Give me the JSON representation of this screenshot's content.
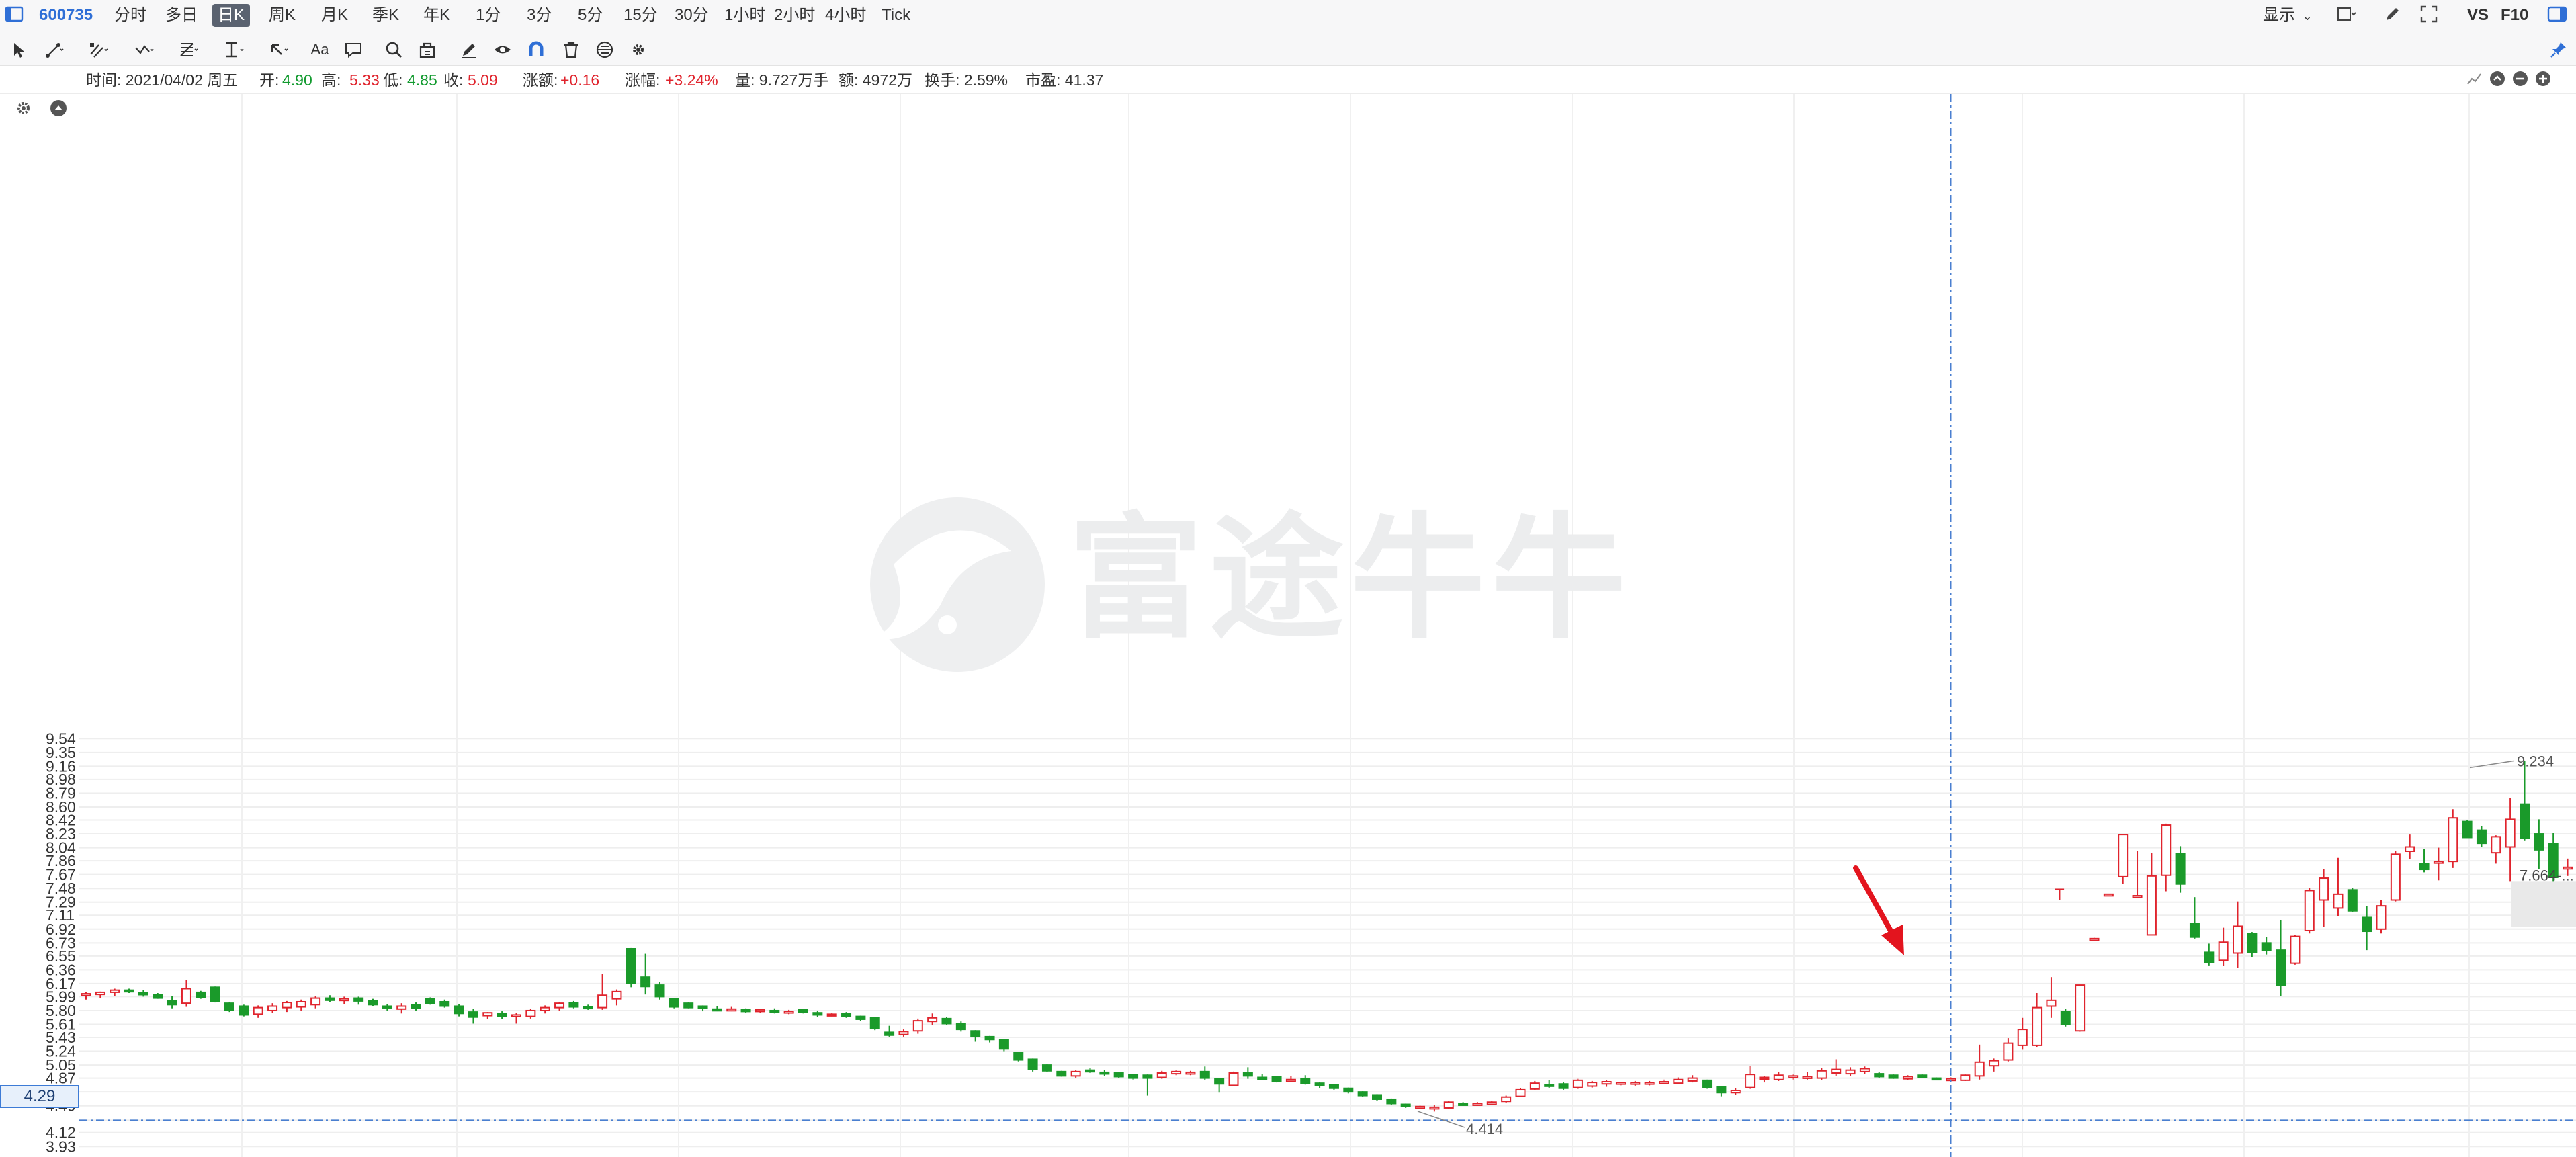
{
  "toolbar": {
    "stock_code": "600735",
    "periods": [
      "分时",
      "多日",
      "日K",
      "周K",
      "月K",
      "季K",
      "年K",
      "1分",
      "3分",
      "5分",
      "15分",
      "30分",
      "1小时",
      "2小时",
      "4小时",
      "Tick"
    ],
    "active_period": "日K",
    "display_label": "显示",
    "vs_label": "VS",
    "f10_label": "F10"
  },
  "tools": [
    "cursor-icon",
    "line-tool-icon",
    "channel-tool-icon",
    "wave-tool-icon",
    "fibonacci-icon",
    "measure-icon",
    "arrow-tool-icon",
    "text-tool-icon",
    "comment-icon",
    "zoom-icon",
    "bag-icon",
    "pen-icon",
    "eye-icon",
    "magnet-icon",
    "trash-icon",
    "lock-icon",
    "settings-icon"
  ],
  "info": {
    "date": "时间: 2021/04/02 周五",
    "open_label": "开:",
    "open": "4.90",
    "high_label": "高:",
    "high": "5.33",
    "low_label": "低:",
    "low": "4.85",
    "close_label": "收:",
    "close": "5.09",
    "change_label": "涨额:",
    "change": "+0.16",
    "pct_label": "涨幅:",
    "pct": "+3.24%",
    "volume": "量: 9.727万手",
    "amount": "额: 4972万",
    "turnover": "换手: 2.59%",
    "pe": "市盈: 41.37"
  },
  "watermark": "富途牛牛",
  "crosshair": {
    "price_label": "4.29"
  },
  "colors": {
    "up": "#e0242d",
    "down": "#1a9a2a",
    "crosshair": "#4a7fd0",
    "watermark": "#e9eaeb",
    "arrow": "#e3141e"
  },
  "chart_data": {
    "type": "candlestick",
    "ylim": [
      3.93,
      9.6
    ],
    "y_ticks": [
      "9.54",
      "9.35",
      "9.16",
      "8.98",
      "8.79",
      "8.60",
      "8.42",
      "8.23",
      "8.04",
      "7.86",
      "7.67",
      "7.48",
      "7.29",
      "7.11",
      "6.92",
      "6.73",
      "6.55",
      "6.36",
      "6.17",
      "5.99",
      "5.80",
      "5.61",
      "5.43",
      "5.24",
      "5.05",
      "4.87",
      "4.68",
      "4.49",
      "4.29",
      "4.12",
      "3.93"
    ],
    "annotations": [
      {
        "text": "4.414",
        "value": 4.414
      },
      {
        "text": "9.234",
        "value": 9.234
      },
      {
        "text": "7.664-...",
        "value": 7.664
      },
      {
        "text": "T",
        "value": 7.4
      }
    ],
    "candles": [
      {
        "o": 6.02,
        "h": 6.05,
        "l": 5.95,
        "c": 6.03
      },
      {
        "o": 6.02,
        "h": 6.06,
        "l": 5.97,
        "c": 6.05
      },
      {
        "o": 6.05,
        "h": 6.1,
        "l": 6.0,
        "c": 6.08
      },
      {
        "o": 6.08,
        "h": 6.1,
        "l": 6.04,
        "c": 6.06
      },
      {
        "o": 6.04,
        "h": 6.08,
        "l": 5.99,
        "c": 6.02
      },
      {
        "o": 6.02,
        "h": 6.04,
        "l": 5.96,
        "c": 5.97
      },
      {
        "o": 5.93,
        "h": 6.0,
        "l": 5.83,
        "c": 5.88
      },
      {
        "o": 5.9,
        "h": 6.22,
        "l": 5.85,
        "c": 6.1
      },
      {
        "o": 6.05,
        "h": 6.07,
        "l": 5.96,
        "c": 5.98
      },
      {
        "o": 6.12,
        "h": 6.13,
        "l": 5.91,
        "c": 5.92
      },
      {
        "o": 5.9,
        "h": 5.92,
        "l": 5.78,
        "c": 5.8
      },
      {
        "o": 5.86,
        "h": 5.88,
        "l": 5.72,
        "c": 5.74
      },
      {
        "o": 5.75,
        "h": 5.87,
        "l": 5.7,
        "c": 5.84
      },
      {
        "o": 5.8,
        "h": 5.9,
        "l": 5.77,
        "c": 5.86
      },
      {
        "o": 5.84,
        "h": 5.93,
        "l": 5.78,
        "c": 5.91
      },
      {
        "o": 5.85,
        "h": 5.95,
        "l": 5.8,
        "c": 5.92
      },
      {
        "o": 5.88,
        "h": 6.0,
        "l": 5.83,
        "c": 5.97
      },
      {
        "o": 5.97,
        "h": 6.01,
        "l": 5.92,
        "c": 5.94
      },
      {
        "o": 5.94,
        "h": 5.99,
        "l": 5.89,
        "c": 5.96
      },
      {
        "o": 5.97,
        "h": 5.99,
        "l": 5.88,
        "c": 5.93
      },
      {
        "o": 5.93,
        "h": 5.96,
        "l": 5.86,
        "c": 5.88
      },
      {
        "o": 5.86,
        "h": 5.89,
        "l": 5.8,
        "c": 5.84
      },
      {
        "o": 5.82,
        "h": 5.9,
        "l": 5.76,
        "c": 5.86
      },
      {
        "o": 5.88,
        "h": 5.91,
        "l": 5.8,
        "c": 5.83
      },
      {
        "o": 5.96,
        "h": 5.98,
        "l": 5.88,
        "c": 5.9
      },
      {
        "o": 5.92,
        "h": 5.95,
        "l": 5.84,
        "c": 5.86
      },
      {
        "o": 5.86,
        "h": 5.89,
        "l": 5.72,
        "c": 5.76
      },
      {
        "o": 5.78,
        "h": 5.82,
        "l": 5.62,
        "c": 5.71
      },
      {
        "o": 5.73,
        "h": 5.78,
        "l": 5.68,
        "c": 5.77
      },
      {
        "o": 5.76,
        "h": 5.79,
        "l": 5.68,
        "c": 5.72
      },
      {
        "o": 5.72,
        "h": 5.77,
        "l": 5.62,
        "c": 5.74
      },
      {
        "o": 5.72,
        "h": 5.82,
        "l": 5.69,
        "c": 5.8
      },
      {
        "o": 5.8,
        "h": 5.87,
        "l": 5.76,
        "c": 5.84
      },
      {
        "o": 5.84,
        "h": 5.92,
        "l": 5.8,
        "c": 5.9
      },
      {
        "o": 5.91,
        "h": 5.93,
        "l": 5.83,
        "c": 5.85
      },
      {
        "o": 5.85,
        "h": 5.88,
        "l": 5.81,
        "c": 5.83
      },
      {
        "o": 5.84,
        "h": 6.3,
        "l": 5.81,
        "c": 6.01
      },
      {
        "o": 5.96,
        "h": 6.09,
        "l": 5.87,
        "c": 6.06
      },
      {
        "o": 6.65,
        "h": 6.66,
        "l": 6.12,
        "c": 6.17
      },
      {
        "o": 6.26,
        "h": 6.58,
        "l": 6.02,
        "c": 6.13
      },
      {
        "o": 6.15,
        "h": 6.19,
        "l": 5.95,
        "c": 5.99
      },
      {
        "o": 5.96,
        "h": 5.97,
        "l": 5.83,
        "c": 5.85
      },
      {
        "o": 5.9,
        "h": 5.91,
        "l": 5.83,
        "c": 5.84
      },
      {
        "o": 5.86,
        "h": 5.87,
        "l": 5.79,
        "c": 5.83
      },
      {
        "o": 5.82,
        "h": 5.86,
        "l": 5.79,
        "c": 5.81
      },
      {
        "o": 5.82,
        "h": 5.85,
        "l": 5.79,
        "c": 5.82
      },
      {
        "o": 5.81,
        "h": 5.83,
        "l": 5.77,
        "c": 5.8
      },
      {
        "o": 5.8,
        "h": 5.82,
        "l": 5.77,
        "c": 5.81
      },
      {
        "o": 5.8,
        "h": 5.83,
        "l": 5.76,
        "c": 5.78
      },
      {
        "o": 5.77,
        "h": 5.81,
        "l": 5.75,
        "c": 5.79
      },
      {
        "o": 5.81,
        "h": 5.82,
        "l": 5.76,
        "c": 5.78
      },
      {
        "o": 5.77,
        "h": 5.8,
        "l": 5.71,
        "c": 5.74
      },
      {
        "o": 5.74,
        "h": 5.77,
        "l": 5.72,
        "c": 5.75
      },
      {
        "o": 5.76,
        "h": 5.78,
        "l": 5.7,
        "c": 5.72
      },
      {
        "o": 5.72,
        "h": 5.73,
        "l": 5.66,
        "c": 5.68
      },
      {
        "o": 5.7,
        "h": 5.71,
        "l": 5.53,
        "c": 5.55
      },
      {
        "o": 5.5,
        "h": 5.59,
        "l": 5.44,
        "c": 5.46
      },
      {
        "o": 5.47,
        "h": 5.54,
        "l": 5.44,
        "c": 5.51
      },
      {
        "o": 5.52,
        "h": 5.69,
        "l": 5.48,
        "c": 5.66
      },
      {
        "o": 5.65,
        "h": 5.76,
        "l": 5.6,
        "c": 5.7
      },
      {
        "o": 5.69,
        "h": 5.71,
        "l": 5.6,
        "c": 5.62
      },
      {
        "o": 5.62,
        "h": 5.65,
        "l": 5.51,
        "c": 5.54
      },
      {
        "o": 5.52,
        "h": 5.53,
        "l": 5.37,
        "c": 5.44
      },
      {
        "o": 5.44,
        "h": 5.45,
        "l": 5.36,
        "c": 5.4
      },
      {
        "o": 5.4,
        "h": 5.41,
        "l": 5.24,
        "c": 5.27
      },
      {
        "o": 5.22,
        "h": 5.23,
        "l": 5.1,
        "c": 5.12
      },
      {
        "o": 5.13,
        "h": 5.14,
        "l": 4.96,
        "c": 4.99
      },
      {
        "o": 5.05,
        "h": 5.06,
        "l": 4.95,
        "c": 4.97
      },
      {
        "o": 4.96,
        "h": 4.97,
        "l": 4.89,
        "c": 4.9
      },
      {
        "o": 4.9,
        "h": 4.98,
        "l": 4.87,
        "c": 4.96
      },
      {
        "o": 4.98,
        "h": 5.01,
        "l": 4.94,
        "c": 4.96
      },
      {
        "o": 4.95,
        "h": 4.98,
        "l": 4.9,
        "c": 4.93
      },
      {
        "o": 4.94,
        "h": 4.95,
        "l": 4.87,
        "c": 4.89
      },
      {
        "o": 4.92,
        "h": 4.93,
        "l": 4.85,
        "c": 4.87
      },
      {
        "o": 4.91,
        "h": 4.92,
        "l": 4.63,
        "c": 4.87
      },
      {
        "o": 4.88,
        "h": 4.97,
        "l": 4.86,
        "c": 4.94
      },
      {
        "o": 4.93,
        "h": 4.98,
        "l": 4.91,
        "c": 4.96
      },
      {
        "o": 4.94,
        "h": 4.97,
        "l": 4.91,
        "c": 4.95
      },
      {
        "o": 4.96,
        "h": 5.03,
        "l": 4.84,
        "c": 4.87
      },
      {
        "o": 4.86,
        "h": 4.87,
        "l": 4.67,
        "c": 4.79
      },
      {
        "o": 4.77,
        "h": 4.96,
        "l": 4.76,
        "c": 4.94
      },
      {
        "o": 4.94,
        "h": 5.02,
        "l": 4.86,
        "c": 4.9
      },
      {
        "o": 4.88,
        "h": 4.93,
        "l": 4.84,
        "c": 4.87
      },
      {
        "o": 4.89,
        "h": 4.9,
        "l": 4.81,
        "c": 4.82
      },
      {
        "o": 4.85,
        "h": 4.9,
        "l": 4.83,
        "c": 4.85
      },
      {
        "o": 4.86,
        "h": 4.91,
        "l": 4.78,
        "c": 4.8
      },
      {
        "o": 4.8,
        "h": 4.82,
        "l": 4.73,
        "c": 4.77
      },
      {
        "o": 4.78,
        "h": 4.79,
        "l": 4.71,
        "c": 4.73
      },
      {
        "o": 4.73,
        "h": 4.74,
        "l": 4.66,
        "c": 4.68
      },
      {
        "o": 4.68,
        "h": 4.69,
        "l": 4.61,
        "c": 4.63
      },
      {
        "o": 4.64,
        "h": 4.65,
        "l": 4.56,
        "c": 4.58
      },
      {
        "o": 4.58,
        "h": 4.59,
        "l": 4.5,
        "c": 4.52
      },
      {
        "o": 4.51,
        "h": 4.52,
        "l": 4.46,
        "c": 4.48
      },
      {
        "o": 4.47,
        "h": 4.49,
        "l": 4.45,
        "c": 4.48
      },
      {
        "o": 4.46,
        "h": 4.5,
        "l": 4.41,
        "c": 4.47
      },
      {
        "o": 4.46,
        "h": 4.56,
        "l": 4.45,
        "c": 4.54
      },
      {
        "o": 4.52,
        "h": 4.54,
        "l": 4.49,
        "c": 4.51
      },
      {
        "o": 4.51,
        "h": 4.54,
        "l": 4.49,
        "c": 4.52
      },
      {
        "o": 4.51,
        "h": 4.56,
        "l": 4.5,
        "c": 4.54
      },
      {
        "o": 4.55,
        "h": 4.63,
        "l": 4.53,
        "c": 4.61
      },
      {
        "o": 4.62,
        "h": 4.73,
        "l": 4.61,
        "c": 4.71
      },
      {
        "o": 4.72,
        "h": 4.83,
        "l": 4.7,
        "c": 4.8
      },
      {
        "o": 4.78,
        "h": 4.84,
        "l": 4.73,
        "c": 4.76
      },
      {
        "o": 4.79,
        "h": 4.81,
        "l": 4.71,
        "c": 4.73
      },
      {
        "o": 4.74,
        "h": 4.86,
        "l": 4.72,
        "c": 4.84
      },
      {
        "o": 4.76,
        "h": 4.83,
        "l": 4.74,
        "c": 4.81
      },
      {
        "o": 4.79,
        "h": 4.84,
        "l": 4.75,
        "c": 4.82
      },
      {
        "o": 4.8,
        "h": 4.82,
        "l": 4.77,
        "c": 4.81
      },
      {
        "o": 4.79,
        "h": 4.83,
        "l": 4.76,
        "c": 4.81
      },
      {
        "o": 4.79,
        "h": 4.83,
        "l": 4.77,
        "c": 4.81
      },
      {
        "o": 4.8,
        "h": 4.85,
        "l": 4.79,
        "c": 4.82
      },
      {
        "o": 4.8,
        "h": 4.88,
        "l": 4.79,
        "c": 4.85
      },
      {
        "o": 4.83,
        "h": 4.91,
        "l": 4.81,
        "c": 4.87
      },
      {
        "o": 4.84,
        "h": 4.85,
        "l": 4.72,
        "c": 4.74
      },
      {
        "o": 4.75,
        "h": 4.76,
        "l": 4.62,
        "c": 4.67
      },
      {
        "o": 4.67,
        "h": 4.73,
        "l": 4.64,
        "c": 4.7
      },
      {
        "o": 4.74,
        "h": 5.04,
        "l": 4.72,
        "c": 4.92
      },
      {
        "o": 4.86,
        "h": 4.9,
        "l": 4.81,
        "c": 4.88
      },
      {
        "o": 4.85,
        "h": 4.95,
        "l": 4.83,
        "c": 4.91
      },
      {
        "o": 4.88,
        "h": 4.92,
        "l": 4.85,
        "c": 4.9
      },
      {
        "o": 4.87,
        "h": 4.95,
        "l": 4.85,
        "c": 4.89
      },
      {
        "o": 4.87,
        "h": 5.01,
        "l": 4.84,
        "c": 4.97
      },
      {
        "o": 4.94,
        "h": 5.13,
        "l": 4.9,
        "c": 4.99
      },
      {
        "o": 4.93,
        "h": 5.02,
        "l": 4.9,
        "c": 4.98
      },
      {
        "o": 4.96,
        "h": 5.03,
        "l": 4.93,
        "c": 5.0
      },
      {
        "o": 4.93,
        "h": 4.95,
        "l": 4.87,
        "c": 4.89
      },
      {
        "o": 4.91,
        "h": 4.92,
        "l": 4.86,
        "c": 4.87
      },
      {
        "o": 4.86,
        "h": 4.91,
        "l": 4.84,
        "c": 4.89
      },
      {
        "o": 4.91,
        "h": 4.92,
        "l": 4.87,
        "c": 4.88
      },
      {
        "o": 4.87,
        "h": 4.88,
        "l": 4.84,
        "c": 4.86
      },
      {
        "o": 4.86,
        "h": 4.88,
        "l": 4.84,
        "c": 4.86
      },
      {
        "o": 4.84,
        "h": 4.92,
        "l": 4.83,
        "c": 4.91
      },
      {
        "o": 4.9,
        "h": 5.33,
        "l": 4.85,
        "c": 5.09
      },
      {
        "o": 5.04,
        "h": 5.14,
        "l": 4.96,
        "c": 5.11
      },
      {
        "o": 5.12,
        "h": 5.42,
        "l": 5.1,
        "c": 5.35
      },
      {
        "o": 5.32,
        "h": 5.7,
        "l": 5.26,
        "c": 5.54
      },
      {
        "o": 5.32,
        "h": 6.04,
        "l": 5.3,
        "c": 5.84
      },
      {
        "o": 5.86,
        "h": 6.26,
        "l": 5.7,
        "c": 5.94
      },
      {
        "o": 5.79,
        "h": 5.82,
        "l": 5.58,
        "c": 5.61
      },
      {
        "o": 5.52,
        "h": 6.15,
        "l": 5.51,
        "c": 6.15
      },
      {
        "o": 6.79,
        "h": 6.8,
        "l": 6.78,
        "c": 6.79
      },
      {
        "o": 7.4,
        "h": 7.4,
        "l": 7.4,
        "c": 7.4
      },
      {
        "o": 7.64,
        "h": 8.22,
        "l": 7.54,
        "c": 8.22
      },
      {
        "o": 7.38,
        "h": 7.99,
        "l": 7.37,
        "c": 7.38
      },
      {
        "o": 6.84,
        "h": 7.97,
        "l": 6.84,
        "c": 7.65
      },
      {
        "o": 7.66,
        "h": 8.37,
        "l": 7.44,
        "c": 8.35
      },
      {
        "o": 7.96,
        "h": 8.06,
        "l": 7.42,
        "c": 7.54
      },
      {
        "o": 7.0,
        "h": 7.36,
        "l": 6.79,
        "c": 6.81
      },
      {
        "o": 6.6,
        "h": 6.72,
        "l": 6.42,
        "c": 6.46
      },
      {
        "o": 6.49,
        "h": 6.94,
        "l": 6.41,
        "c": 6.74
      },
      {
        "o": 6.59,
        "h": 7.3,
        "l": 6.39,
        "c": 6.96
      },
      {
        "o": 6.86,
        "h": 6.88,
        "l": 6.53,
        "c": 6.6
      },
      {
        "o": 6.73,
        "h": 6.81,
        "l": 6.57,
        "c": 6.63
      },
      {
        "o": 6.63,
        "h": 7.04,
        "l": 6.0,
        "c": 6.15
      },
      {
        "o": 6.45,
        "h": 6.84,
        "l": 6.43,
        "c": 6.82
      },
      {
        "o": 6.9,
        "h": 7.49,
        "l": 6.86,
        "c": 7.45
      },
      {
        "o": 7.32,
        "h": 7.74,
        "l": 6.95,
        "c": 7.62
      },
      {
        "o": 7.21,
        "h": 7.9,
        "l": 7.1,
        "c": 7.4
      },
      {
        "o": 7.46,
        "h": 7.49,
        "l": 7.15,
        "c": 7.17
      },
      {
        "o": 7.08,
        "h": 7.24,
        "l": 6.63,
        "c": 6.89
      },
      {
        "o": 6.92,
        "h": 7.32,
        "l": 6.86,
        "c": 7.24
      },
      {
        "o": 7.32,
        "h": 7.99,
        "l": 7.3,
        "c": 7.95
      },
      {
        "o": 7.99,
        "h": 8.22,
        "l": 7.88,
        "c": 8.05
      },
      {
        "o": 7.82,
        "h": 8.02,
        "l": 7.7,
        "c": 7.74
      },
      {
        "o": 7.84,
        "h": 8.04,
        "l": 7.59,
        "c": 7.85
      },
      {
        "o": 7.85,
        "h": 8.57,
        "l": 7.76,
        "c": 8.45
      },
      {
        "o": 8.4,
        "h": 8.42,
        "l": 8.18,
        "c": 8.18
      },
      {
        "o": 8.28,
        "h": 8.34,
        "l": 8.05,
        "c": 8.1
      },
      {
        "o": 7.97,
        "h": 8.21,
        "l": 7.82,
        "c": 8.19
      },
      {
        "o": 8.05,
        "h": 8.73,
        "l": 7.58,
        "c": 8.43
      },
      {
        "o": 8.64,
        "h": 9.23,
        "l": 8.14,
        "c": 8.17
      },
      {
        "o": 8.23,
        "h": 8.43,
        "l": 7.75,
        "c": 8.01
      },
      {
        "o": 8.1,
        "h": 8.24,
        "l": 7.55,
        "c": 7.63
      },
      {
        "o": 7.77,
        "h": 7.89,
        "l": 7.65,
        "c": 7.77
      },
      {
        "o": 7.48,
        "h": 7.5,
        "l": 7.05,
        "c": 7.06
      },
      {
        "o": 6.91,
        "h": 7.01,
        "l": 6.84,
        "c": 6.95
      },
      {
        "o": 6.97,
        "h": 6.98,
        "l": 6.73,
        "c": 6.79
      },
      {
        "o": 6.79,
        "h": 6.82,
        "l": 6.55,
        "c": 6.57
      }
    ]
  }
}
